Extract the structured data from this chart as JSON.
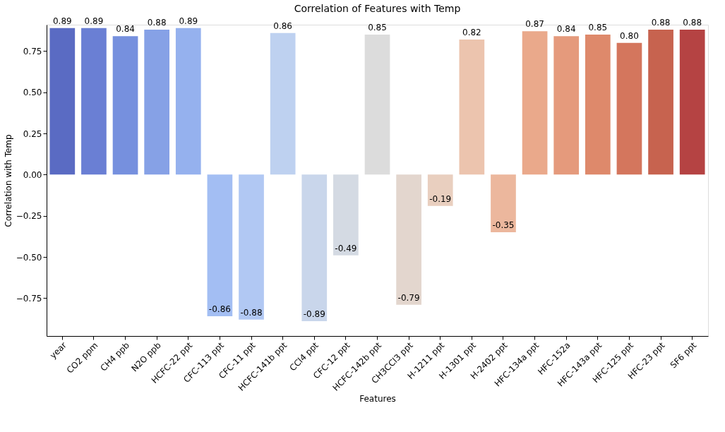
{
  "chart_data": {
    "type": "bar",
    "title": "Correlation of Features with Temp",
    "xlabel": "Features",
    "ylabel": "Correlation with Temp",
    "categories": [
      "year",
      "CO2 ppm",
      "CH4 ppb",
      "N2O ppb",
      "HCFC-22 ppt",
      "CFC-113 ppt",
      "CFC-11 ppt",
      "HCFC-141b ppt",
      "CCl4 ppt",
      "CFC-12 ppt",
      "HCFC-142b ppt",
      "CH3CCl3 ppt",
      "H-1211 ppt",
      "H-1301 ppt",
      "H-2402 ppt",
      "HFC-134a ppt",
      "HFC-152a",
      "HFC-143a ppt",
      "HFC-125 ppt",
      "HFC-23 ppt",
      "SF6 ppt"
    ],
    "values": [
      0.89,
      0.89,
      0.84,
      0.88,
      0.89,
      -0.86,
      -0.88,
      0.86,
      -0.89,
      -0.49,
      0.85,
      -0.79,
      -0.19,
      0.82,
      -0.35,
      0.87,
      0.84,
      0.85,
      0.8,
      0.88,
      0.88
    ],
    "colors": [
      "#5a6bc3",
      "#6a7fd4",
      "#7690de",
      "#86a1e6",
      "#95b1ee",
      "#a3bef3",
      "#b1c8f3",
      "#bed1f0",
      "#c9d6eb",
      "#d4dae3",
      "#dcdcdc",
      "#e3d6ce",
      "#e9cfbf",
      "#ecc4ae",
      "#ecb79d",
      "#eaa98b",
      "#e59a7c",
      "#de896b",
      "#d4765d",
      "#c7634f",
      "#b54343"
    ],
    "value_labels": [
      "0.89",
      "0.89",
      "0.84",
      "0.88",
      "0.89",
      "-0.86",
      "-0.88",
      "0.86",
      "-0.89",
      "-0.49",
      "0.85",
      "-0.79",
      "-0.19",
      "0.82",
      "-0.35",
      "0.87",
      "0.84",
      "0.85",
      "0.80",
      "0.88",
      "0.88"
    ],
    "ylim": [
      -0.98,
      0.91
    ],
    "yticks": [
      {
        "value": -0.75,
        "label": "−0.75"
      },
      {
        "value": -0.5,
        "label": "−0.50"
      },
      {
        "value": -0.25,
        "label": "−0.25"
      },
      {
        "value": 0,
        "label": "0.00"
      },
      {
        "value": 0.25,
        "label": "0.25"
      },
      {
        "value": 0.5,
        "label": "0.50"
      },
      {
        "value": 0.75,
        "label": "0.75"
      }
    ],
    "grid": false,
    "legend": false
  }
}
